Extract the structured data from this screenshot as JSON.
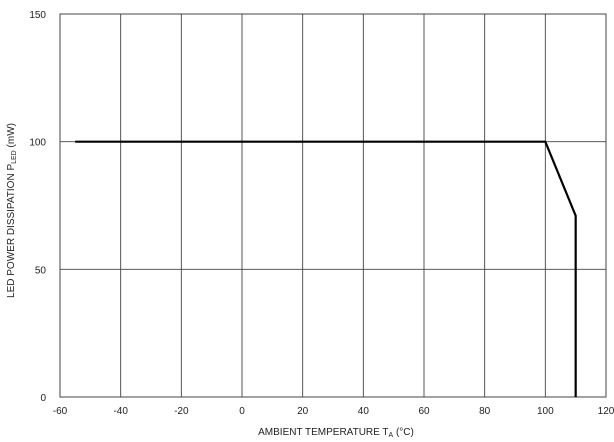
{
  "chart_data": {
    "type": "line",
    "title": "",
    "xlabel": "AMBIENT TEMPERATURE T",
    "xlabel_sub": "A",
    "xlabel_unit": " (°C)",
    "ylabel": "LED POWER DISSIPATION P",
    "ylabel_sub": "LED",
    "ylabel_unit": " (mW)",
    "xlim": [
      -60,
      120
    ],
    "ylim": [
      0,
      150
    ],
    "xticks": [
      -60,
      -40,
      -20,
      0,
      20,
      40,
      60,
      80,
      100,
      120
    ],
    "xtick_labels": [
      "-60",
      "-40",
      "-20",
      "0",
      "20",
      "40",
      "60",
      "80",
      "100",
      "120"
    ],
    "yticks": [
      0,
      50,
      100,
      150
    ],
    "ytick_labels": [
      "0",
      "50",
      "100",
      "150"
    ],
    "grid": true,
    "series": [
      {
        "x": [
          -55,
          100,
          110,
          110
        ],
        "y": [
          100,
          100,
          71,
          0
        ]
      }
    ]
  }
}
